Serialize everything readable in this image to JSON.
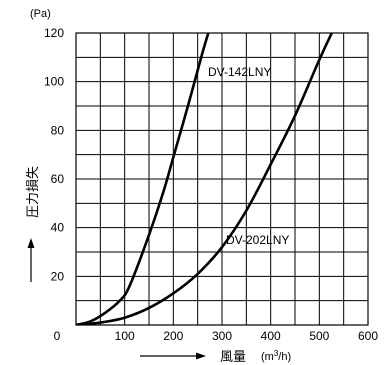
{
  "chart_data": {
    "type": "line",
    "y_unit": "(Pa)",
    "xlabel": "風量",
    "xlabel_unit_pre": "(m",
    "xlabel_unit_sup": "3",
    "xlabel_unit_post": "/h)",
    "ylabel": "圧力損失",
    "xlim": [
      0,
      600
    ],
    "ylim": [
      0,
      120
    ],
    "x_ticks": [
      0,
      100,
      200,
      300,
      400,
      500,
      600
    ],
    "y_ticks": [
      20,
      40,
      60,
      80,
      100,
      120
    ],
    "x_minor_step": 50,
    "y_minor_step": 10,
    "grid": true,
    "series": [
      {
        "name": "DV-142LNY",
        "x": [
          0,
          30,
          60,
          90,
          110,
          150,
          180,
          200,
          230,
          260,
          275
        ],
        "y": [
          0,
          1.5,
          5,
          10,
          16,
          37,
          55,
          69,
          90,
          112,
          122
        ]
      },
      {
        "name": "DV-202LNY",
        "x": [
          0,
          50,
          100,
          150,
          200,
          250,
          300,
          350,
          400,
          450,
          500,
          535
        ],
        "y": [
          0,
          1,
          3,
          7,
          13,
          21,
          32,
          47,
          66,
          86,
          109,
          124
        ]
      }
    ]
  }
}
